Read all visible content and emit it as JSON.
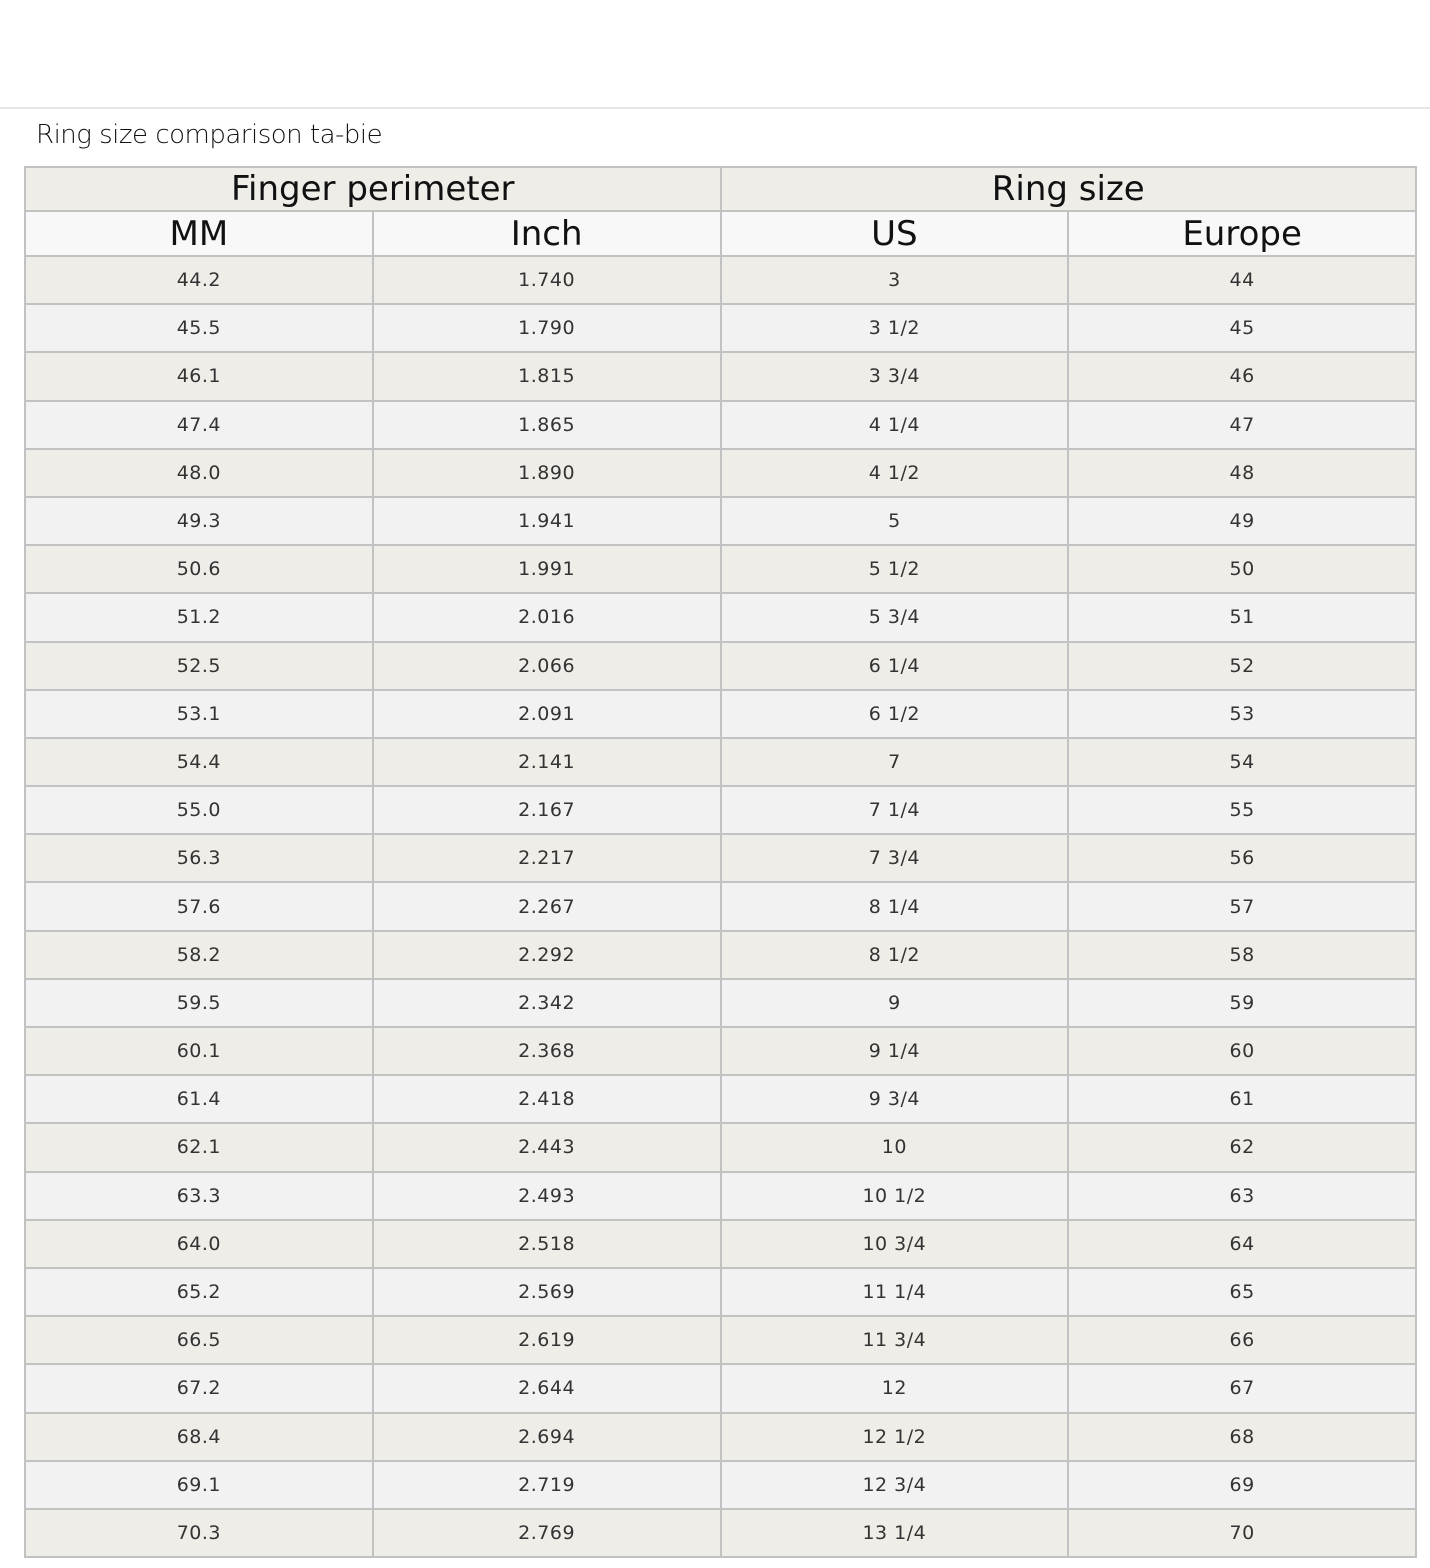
{
  "title": "Ring size comparison ta-bie",
  "table": {
    "group_headers": [
      "Finger perimeter",
      "Ring size"
    ],
    "columns": [
      "MM",
      "Inch",
      "US",
      "Europe"
    ],
    "rows": [
      [
        "44.2",
        "1.740",
        "3",
        "44"
      ],
      [
        "45.5",
        "1.790",
        "3 1/2",
        "45"
      ],
      [
        "46.1",
        "1.815",
        "3 3/4",
        "46"
      ],
      [
        "47.4",
        "1.865",
        "4 1/4",
        "47"
      ],
      [
        "48.0",
        "1.890",
        "4 1/2",
        "48"
      ],
      [
        "49.3",
        "1.941",
        "5",
        "49"
      ],
      [
        "50.6",
        "1.991",
        "5 1/2",
        "50"
      ],
      [
        "51.2",
        "2.016",
        "5 3/4",
        "51"
      ],
      [
        "52.5",
        "2.066",
        "6 1/4",
        "52"
      ],
      [
        "53.1",
        "2.091",
        "6 1/2",
        "53"
      ],
      [
        "54.4",
        "2.141",
        "7",
        "54"
      ],
      [
        "55.0",
        "2.167",
        "7 1/4",
        "55"
      ],
      [
        "56.3",
        "2.217",
        "7 3/4",
        "56"
      ],
      [
        "57.6",
        "2.267",
        "8 1/4",
        "57"
      ],
      [
        "58.2",
        "2.292",
        "8 1/2",
        "58"
      ],
      [
        "59.5",
        "2.342",
        "9",
        "59"
      ],
      [
        "60.1",
        "2.368",
        "9 1/4",
        "60"
      ],
      [
        "61.4",
        "2.418",
        "9 3/4",
        "61"
      ],
      [
        "62.1",
        "2.443",
        "10",
        "62"
      ],
      [
        "63.3",
        "2.493",
        "10 1/2",
        "63"
      ],
      [
        "64.0",
        "2.518",
        "10 3/4",
        "64"
      ],
      [
        "65.2",
        "2.569",
        "11 1/4",
        "65"
      ],
      [
        "66.5",
        "2.619",
        "11 3/4",
        "66"
      ],
      [
        "67.2",
        "2.644",
        "12",
        "67"
      ],
      [
        "68.4",
        "2.694",
        "12 1/2",
        "68"
      ],
      [
        "69.1",
        "2.719",
        "12 3/4",
        "69"
      ],
      [
        "70.3",
        "2.769",
        "13 1/4",
        "70"
      ]
    ]
  }
}
